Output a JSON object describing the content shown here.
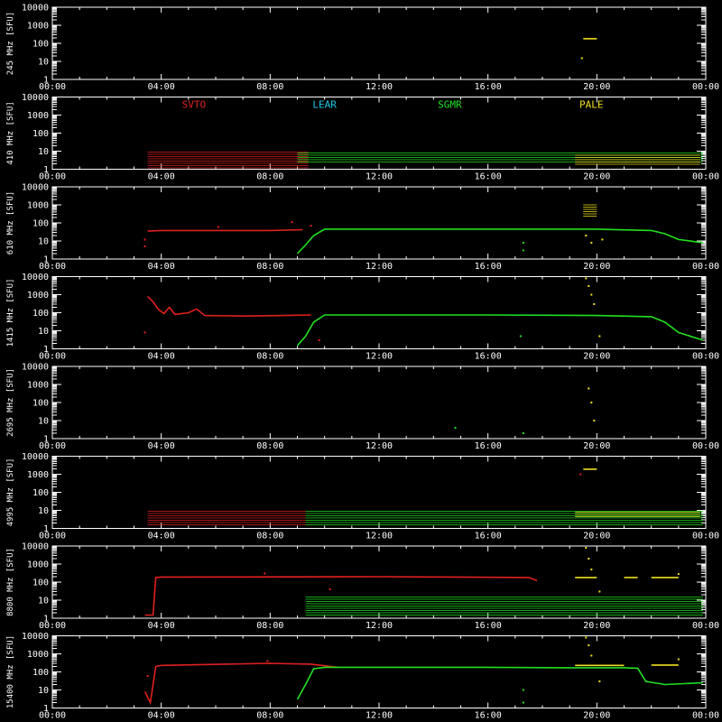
{
  "chart_data": {
    "type": "scatter",
    "x_tick_labels": [
      "00:00",
      "04:00",
      "08:00",
      "12:00",
      "16:00",
      "20:00",
      "00:00"
    ],
    "x_tick_hours": [
      0,
      4,
      8,
      12,
      16,
      20,
      24
    ],
    "xlim": [
      0,
      24
    ],
    "y_scale": "log",
    "ylim": [
      1,
      10000
    ],
    "y_tick_labels": [
      "10000",
      "1000",
      "100",
      "10",
      "1"
    ],
    "y_tick_values": [
      10000,
      1000,
      100,
      10,
      1
    ],
    "legend": [
      {
        "name": "SVTO",
        "color": "#e02020",
        "hour": 5.2
      },
      {
        "name": "LEAR",
        "color": "#20c8e8",
        "hour": 10.0
      },
      {
        "name": "SGMR",
        "color": "#20e020",
        "hour": 14.6
      },
      {
        "name": "PALE",
        "color": "#f0e020",
        "hour": 19.8
      }
    ],
    "panels": [
      {
        "ylabel": "245 MHz [SFU]",
        "series": [
          {
            "station": "PALE",
            "segments": [
              [
                [
                  19.5,
                  180
                ],
                [
                  20.0,
                  180
                ]
              ]
            ],
            "dots": [
              [
                19.45,
                15
              ]
            ],
            "bands": []
          }
        ]
      },
      {
        "ylabel": "410 MHz [SFU]",
        "series": [
          {
            "station": "SVTO",
            "segments": [],
            "dots": [],
            "bands": [
              [
                3.5,
                9.4,
                1.2,
                9
              ]
            ]
          },
          {
            "station": "SGMR",
            "segments": [],
            "dots": [],
            "bands": [
              [
                9.0,
                23.9,
                2.5,
                8
              ]
            ]
          },
          {
            "station": "PALE",
            "segments": [],
            "dots": [],
            "bands": [
              [
                19.2,
                23.8,
                1.5,
                6
              ]
            ]
          }
        ]
      },
      {
        "ylabel": "610 MHz [SFU]",
        "series": [
          {
            "station": "SVTO",
            "segments": [
              [
                [
                  3.5,
                  35
                ],
                [
                  4.0,
                  38
                ],
                [
                  8.0,
                  38
                ],
                [
                  9.2,
                  42
                ]
              ]
            ],
            "dots": [
              [
                3.4,
                12
              ],
              [
                3.4,
                5
              ],
              [
                6.1,
                60
              ],
              [
                8.8,
                110
              ],
              [
                9.5,
                70
              ]
            ],
            "bands": []
          },
          {
            "station": "SGMR",
            "segments": [
              [
                [
                  9.0,
                  2
                ],
                [
                  9.3,
                  6
                ],
                [
                  9.6,
                  20
                ],
                [
                  10.0,
                  45
                ],
                [
                  12.0,
                  45
                ],
                [
                  16.0,
                  45
                ],
                [
                  20.0,
                  45
                ],
                [
                  22.0,
                  38
                ],
                [
                  22.5,
                  25
                ],
                [
                  23.0,
                  12
                ],
                [
                  23.9,
                  8
                ]
              ]
            ],
            "dots": [
              [
                17.3,
                8
              ],
              [
                17.3,
                3
              ]
            ],
            "bands": []
          },
          {
            "station": "PALE",
            "segments": [],
            "dots": [
              [
                19.6,
                20
              ],
              [
                19.8,
                8
              ],
              [
                20.2,
                12
              ]
            ],
            "bands": [
              [
                19.5,
                20.0,
                200,
                1000
              ]
            ]
          }
        ]
      },
      {
        "ylabel": "1415 MHz [SFU]",
        "series": [
          {
            "station": "SVTO",
            "segments": [
              [
                [
                  3.5,
                  800
                ],
                [
                  3.7,
                  400
                ],
                [
                  3.9,
                  150
                ],
                [
                  4.1,
                  90
                ],
                [
                  4.3,
                  200
                ],
                [
                  4.5,
                  80
                ],
                [
                  5.0,
                  100
                ],
                [
                  5.3,
                  160
                ],
                [
                  5.6,
                  70
                ],
                [
                  7.0,
                  65
                ],
                [
                  8.5,
                  70
                ],
                [
                  9.5,
                  75
                ]
              ]
            ],
            "dots": [
              [
                3.4,
                8
              ],
              [
                9.8,
                3
              ]
            ],
            "bands": []
          },
          {
            "station": "SGMR",
            "segments": [
              [
                [
                  9.0,
                  1.5
                ],
                [
                  9.3,
                  5
                ],
                [
                  9.6,
                  30
                ],
                [
                  10.0,
                  75
                ],
                [
                  12.0,
                  75
                ],
                [
                  16.0,
                  75
                ],
                [
                  20.0,
                  70
                ],
                [
                  22.0,
                  60
                ],
                [
                  22.5,
                  30
                ],
                [
                  23.0,
                  8
                ],
                [
                  23.9,
                  3
                ]
              ]
            ],
            "dots": [
              [
                17.2,
                5
              ]
            ],
            "bands": []
          },
          {
            "station": "PALE",
            "segments": [],
            "dots": [
              [
                19.6,
                8000
              ],
              [
                19.7,
                3000
              ],
              [
                19.8,
                1000
              ],
              [
                19.9,
                300
              ],
              [
                20.1,
                5
              ]
            ],
            "bands": []
          }
        ]
      },
      {
        "ylabel": "2695 MHz [SFU]",
        "series": [
          {
            "station": "SGMR",
            "segments": [],
            "dots": [
              [
                14.8,
                4
              ],
              [
                17.3,
                2
              ]
            ],
            "bands": []
          },
          {
            "station": "PALE",
            "segments": [],
            "dots": [
              [
                19.7,
                600
              ],
              [
                19.8,
                100
              ],
              [
                19.9,
                10
              ]
            ],
            "bands": []
          }
        ]
      },
      {
        "ylabel": "4995 MHz [SFU]",
        "series": [
          {
            "station": "SVTO",
            "segments": [],
            "dots": [
              [
                19.4,
                1000
              ]
            ],
            "bands": [
              [
                3.5,
                9.3,
                1.5,
                9
              ]
            ]
          },
          {
            "station": "SGMR",
            "segments": [],
            "dots": [],
            "bands": [
              [
                9.3,
                23.9,
                1.5,
                9
              ]
            ]
          },
          {
            "station": "PALE",
            "segments": [
              [
                [
                  19.5,
                  1900
                ],
                [
                  20.0,
                  1900
                ]
              ]
            ],
            "dots": [],
            "bands": [
              [
                19.2,
                23.8,
                4,
                8
              ]
            ]
          }
        ]
      },
      {
        "ylabel": "8800 MHz [SFU]",
        "series": [
          {
            "station": "SVTO",
            "segments": [
              [
                [
                  3.4,
                  1.5
                ],
                [
                  3.7,
                  1.5
                ],
                [
                  3.8,
                  180
                ],
                [
                  4.0,
                  190
                ],
                [
                  12.0,
                  200
                ],
                [
                  17.5,
                  180
                ],
                [
                  17.8,
                  120
                ]
              ]
            ],
            "dots": [
              [
                7.8,
                300
              ],
              [
                10.2,
                40
              ]
            ],
            "bands": []
          },
          {
            "station": "SGMR",
            "segments": [],
            "dots": [],
            "bands": [
              [
                9.3,
                23.9,
                1.2,
                15
              ]
            ]
          },
          {
            "station": "PALE",
            "segments": [
              [
                [
                  19.2,
                  180
                ],
                [
                  20.0,
                  180
                ]
              ],
              [
                [
                  21.0,
                  180
                ],
                [
                  21.5,
                  180
                ]
              ],
              [
                [
                  22.0,
                  180
                ],
                [
                  23.0,
                  180
                ]
              ]
            ],
            "dots": [
              [
                19.6,
                8000
              ],
              [
                19.7,
                2000
              ],
              [
                19.8,
                500
              ],
              [
                20.1,
                30
              ],
              [
                23.0,
                280
              ]
            ],
            "bands": []
          }
        ]
      },
      {
        "ylabel": "15400 MHz [SFU]",
        "series": [
          {
            "station": "SVTO",
            "segments": [
              [
                [
                  3.4,
                  8
                ],
                [
                  3.6,
                  2
                ],
                [
                  3.8,
                  200
                ],
                [
                  4.0,
                  230
                ],
                [
                  8.0,
                  300
                ],
                [
                  9.5,
                  270
                ],
                [
                  10.5,
                  180
                ]
              ]
            ],
            "dots": [
              [
                7.9,
                400
              ],
              [
                3.5,
                60
              ]
            ],
            "bands": []
          },
          {
            "station": "SGMR",
            "segments": [
              [
                [
                  9.0,
                  3
                ],
                [
                  9.3,
                  20
                ],
                [
                  9.6,
                  150
                ],
                [
                  10.0,
                  180
                ],
                [
                  12.0,
                  180
                ],
                [
                  16.0,
                  180
                ],
                [
                  19.0,
                  170
                ],
                [
                  21.0,
                  170
                ],
                [
                  21.5,
                  160
                ],
                [
                  21.8,
                  30
                ],
                [
                  22.5,
                  20
                ],
                [
                  23.9,
                  25
                ]
              ]
            ],
            "dots": [
              [
                17.3,
                10
              ],
              [
                17.3,
                2
              ]
            ],
            "bands": []
          },
          {
            "station": "PALE",
            "segments": [
              [
                [
                  19.2,
                  230
                ],
                [
                  21.0,
                  230
                ]
              ],
              [
                [
                  22.0,
                  240
                ],
                [
                  23.0,
                  240
                ]
              ]
            ],
            "dots": [
              [
                19.6,
                8000
              ],
              [
                19.7,
                3000
              ],
              [
                19.8,
                800
              ],
              [
                20.1,
                30
              ],
              [
                23.0,
                500
              ]
            ],
            "bands": []
          }
        ]
      }
    ]
  }
}
